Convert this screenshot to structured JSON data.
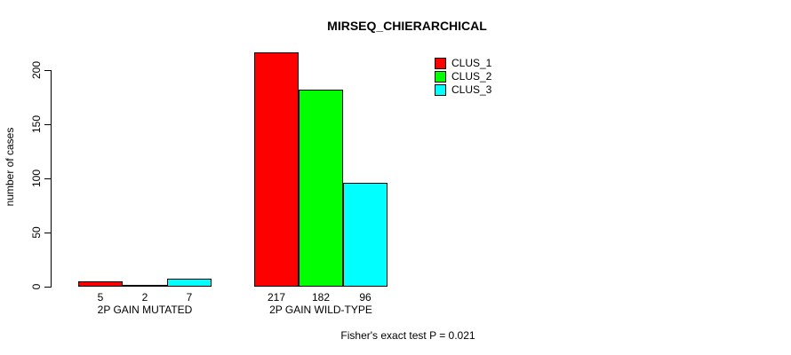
{
  "chart_data": {
    "type": "bar",
    "title": "MIRSEQ_CHIERARCHICAL",
    "xlabel": "",
    "ylabel": "number of cases",
    "categories": [
      "2P GAIN MUTATED",
      "2P GAIN WILD-TYPE"
    ],
    "series": [
      {
        "name": "CLUS_1",
        "color": "#ff0000",
        "values": [
          5,
          217
        ]
      },
      {
        "name": "CLUS_2",
        "color": "#00ff00",
        "values": [
          2,
          182
        ]
      },
      {
        "name": "CLUS_3",
        "color": "#00ffff",
        "values": [
          7,
          96
        ]
      }
    ],
    "bar_value_labels": [
      [
        "5",
        "2",
        "7"
      ],
      [
        "217",
        "182",
        "96"
      ]
    ],
    "yticks": [
      0,
      50,
      100,
      150,
      200
    ],
    "ylim": [
      0,
      217
    ],
    "grid": false,
    "legend_position": "top-right",
    "annotation": "Fisher's exact test P = 0.021",
    "bar_border_color": "#000000",
    "text_color": "#000000",
    "background_color": "#ffffff"
  }
}
